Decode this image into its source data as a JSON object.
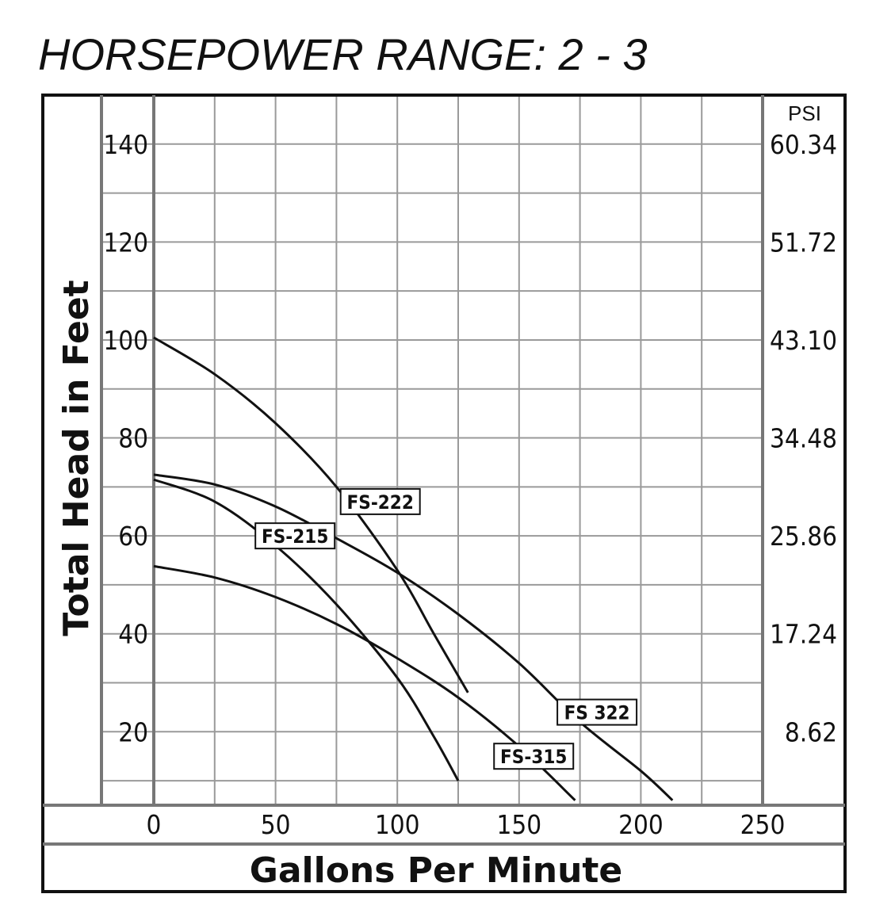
{
  "chart_data": {
    "type": "line",
    "title": "HORSEPOWER RANGE: 2 - 3",
    "xlabel": "Gallons Per Minute",
    "ylabel": "Total Head in Feet",
    "secondary_ylabel": "PSI",
    "xlim": [
      0,
      250
    ],
    "ylim": [
      5,
      150
    ],
    "grid": true,
    "x_ticks": [
      "0",
      "50",
      "100",
      "150",
      "200",
      "250"
    ],
    "y_ticks": [
      {
        "value": 20,
        "label": "20"
      },
      {
        "value": 40,
        "label": "40"
      },
      {
        "value": 60,
        "label": "60"
      },
      {
        "value": 80,
        "label": "80"
      },
      {
        "value": 100,
        "label": "100"
      },
      {
        "value": 120,
        "label": "120"
      },
      {
        "value": 140,
        "label": "140"
      }
    ],
    "psi_ticks": [
      {
        "value": 20,
        "label": "8.62"
      },
      {
        "value": 40,
        "label": "17.24"
      },
      {
        "value": 60,
        "label": "25.86"
      },
      {
        "value": 80,
        "label": "34.48"
      },
      {
        "value": 100,
        "label": "43.10"
      },
      {
        "value": 120,
        "label": "51.72"
      },
      {
        "value": 140,
        "label": "60.34"
      }
    ],
    "series": [
      {
        "name": "FS-222",
        "label_at": [
          93,
          67
        ],
        "x": [
          0,
          25,
          50,
          75,
          100,
          115,
          129
        ],
        "y": [
          100.5,
          93,
          83,
          70,
          53,
          40,
          28
        ]
      },
      {
        "name": "FS-215",
        "label_at": [
          58,
          60
        ],
        "x": [
          0,
          25,
          50,
          75,
          100,
          115,
          125
        ],
        "y": [
          71.5,
          67,
          58,
          46,
          31,
          19,
          10
        ]
      },
      {
        "name": "FS 322",
        "label_at": [
          182,
          24
        ],
        "x": [
          0,
          25,
          50,
          75,
          100,
          125,
          150,
          175,
          200,
          213
        ],
        "y": [
          72.5,
          70.5,
          66,
          59.5,
          52.5,
          44,
          34,
          22,
          12,
          6
        ]
      },
      {
        "name": "FS-315",
        "label_at": [
          156,
          15
        ],
        "x": [
          0,
          25,
          50,
          75,
          100,
          125,
          150,
          173
        ],
        "y": [
          53.8,
          51.5,
          47.5,
          42,
          35,
          27,
          17,
          6
        ]
      }
    ]
  }
}
